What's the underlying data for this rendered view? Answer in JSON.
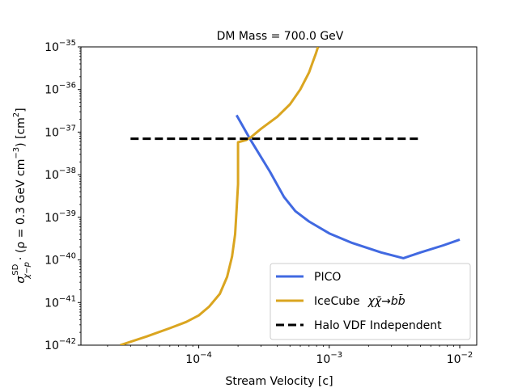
{
  "chart_data": {
    "type": "line",
    "title": "DM Mass = 700.0 GeV",
    "xlabel": "Stream Velocity [c]",
    "ylabel_parts": {
      "sigma": "σ",
      "superscript": "SD",
      "subscript": "χ−p",
      "rest": "· (ρ = 0.3 GeV cm",
      "exp": "−3",
      "unit": ") [cm",
      "unit_exp": "2",
      "close": "]"
    },
    "xscale": "log",
    "yscale": "log",
    "xlim": [
      1.25e-05,
      0.0135
    ],
    "ylim": [
      1e-42,
      1e-35
    ],
    "x_ticks": [
      {
        "value": 0.0001,
        "base": "10",
        "exp": "−4"
      },
      {
        "value": 0.001,
        "base": "10",
        "exp": "−3"
      },
      {
        "value": 0.01,
        "base": "10",
        "exp": "−2"
      }
    ],
    "y_ticks": [
      {
        "value": 1e-42,
        "base": "10",
        "exp": "−42"
      },
      {
        "value": 1e-41,
        "base": "10",
        "exp": "−41"
      },
      {
        "value": 1e-40,
        "base": "10",
        "exp": "−40"
      },
      {
        "value": 1e-39,
        "base": "10",
        "exp": "−39"
      },
      {
        "value": 1e-38,
        "base": "10",
        "exp": "−38"
      },
      {
        "value": 1e-37,
        "base": "10",
        "exp": "−37"
      },
      {
        "value": 1e-36,
        "base": "10",
        "exp": "−36"
      },
      {
        "value": 1e-35,
        "base": "10",
        "exp": "−35"
      }
    ],
    "legend_position": "lower-right",
    "series": [
      {
        "name": "PICO",
        "color": "#4169e1",
        "dash": "solid",
        "x": [
          0.000195,
          0.00025,
          0.00035,
          0.00045,
          0.00055,
          0.0007,
          0.001,
          0.0015,
          0.0025,
          0.0037,
          0.005,
          0.0075,
          0.01
        ],
        "y": [
          2.5e-37,
          6.5e-38,
          1.2e-38,
          3e-39,
          1.4e-39,
          8e-40,
          4.2e-40,
          2.5e-40,
          1.5e-40,
          1.1e-40,
          1.5e-40,
          2.2e-40,
          3e-40
        ]
      },
      {
        "name": "IceCube",
        "legend_math": "χχ̄→bb̄",
        "color": "#daa520",
        "dash": "solid",
        "x": [
          2.5e-05,
          4e-05,
          6e-05,
          8e-05,
          0.0001,
          0.00012,
          0.000145,
          0.000165,
          0.00018,
          0.00019,
          0.000195,
          0.0002,
          0.0002,
          0.00021,
          0.00023,
          0.00025,
          0.0003,
          0.0004,
          0.0005,
          0.0006,
          0.0007,
          0.00075,
          0.00079,
          0.00082
        ],
        "y": [
          1e-42,
          1.6e-42,
          2.5e-42,
          3.5e-42,
          5e-42,
          8e-42,
          1.6e-41,
          4e-41,
          1.2e-40,
          4e-40,
          1.5e-39,
          6e-39,
          5.8e-38,
          6e-38,
          6.5e-38,
          7.5e-38,
          1.2e-37,
          2.3e-37,
          4.5e-37,
          1e-36,
          2.5e-36,
          4.5e-36,
          7e-36,
          1e-35
        ]
      },
      {
        "name": "Halo VDF Independent",
        "color": "#000000",
        "dash": "dashed",
        "x": [
          3e-05,
          0.005
        ],
        "y": [
          7e-38,
          7e-38
        ]
      }
    ]
  }
}
